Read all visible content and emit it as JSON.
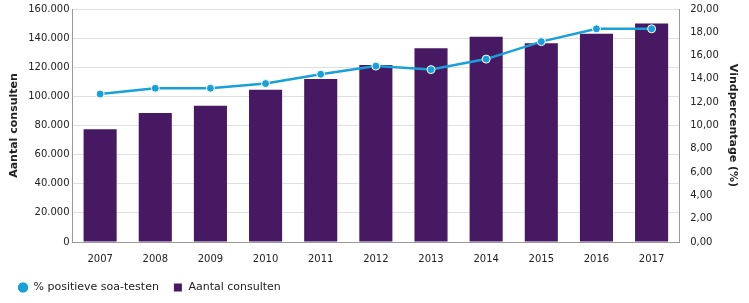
{
  "chart_data": {
    "type": "bar",
    "categories": [
      "2007",
      "2008",
      "2009",
      "2010",
      "2011",
      "2012",
      "2013",
      "2014",
      "2015",
      "2016",
      "2017"
    ],
    "y_label": "Aantal consulten",
    "y2_label": "Vindpercentage (%)",
    "series": [
      {
        "name": "Aantal consulten",
        "type": "bar",
        "color": "#471963",
        "values": [
          77500,
          88500,
          93500,
          104500,
          112000,
          121500,
          133000,
          141000,
          136500,
          143000,
          150000
        ]
      },
      {
        "name": "% positieve soa-testen",
        "type": "line",
        "color": "#1aa0d8",
        "marker": "circle",
        "axis": "y2",
        "values": [
          12.7,
          13.2,
          13.2,
          13.6,
          14.4,
          15.1,
          14.8,
          15.7,
          17.2,
          18.3,
          18.3
        ]
      }
    ],
    "ylim": [
      0,
      160000
    ],
    "yticks": [
      0,
      {
        "value": 20000,
        "label": "20.000"
      },
      {
        "value": 40000,
        "label": "40.000"
      },
      {
        "value": 60000,
        "label": "60.000"
      },
      {
        "value": 80000,
        "label": "80.000"
      },
      {
        "value": 100000,
        "label": "100.000"
      },
      {
        "value": 120000,
        "label": "120.000"
      },
      {
        "value": 140000,
        "label": "140.000"
      },
      {
        "value": 160000,
        "label": "160.000"
      }
    ],
    "y2lim": [
      0,
      20
    ],
    "y2ticks": [
      {
        "value": 0,
        "label": "0,00"
      },
      {
        "value": 2,
        "label": "2,00"
      },
      {
        "value": 4,
        "label": "4,00"
      },
      {
        "value": 6,
        "label": "6,00"
      },
      {
        "value": 8,
        "label": "8,00"
      },
      {
        "value": 10,
        "label": "10,00"
      },
      {
        "value": 12,
        "label": "12,00"
      },
      {
        "value": 14,
        "label": "14,00"
      },
      {
        "value": 16,
        "label": "16,00"
      },
      {
        "value": 18,
        "label": "18,00"
      },
      {
        "value": 20,
        "label": "20,00"
      }
    ],
    "grid": true,
    "legend": "bottom"
  }
}
